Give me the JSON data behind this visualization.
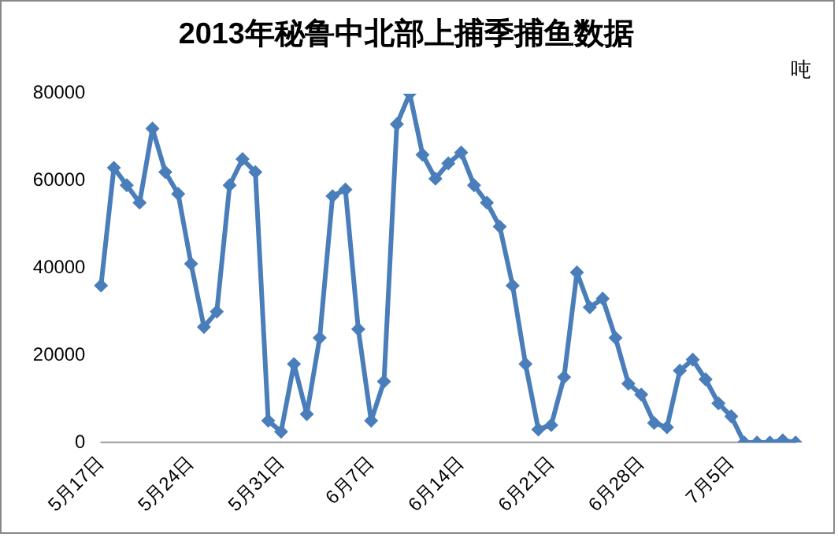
{
  "chart_data": {
    "type": "line",
    "title": "2013年秘鲁中北部上捕季捕鱼数据",
    "annotations": [
      "吨"
    ],
    "categories": [
      "5月17日",
      null,
      null,
      null,
      null,
      null,
      null,
      "5月24日",
      null,
      null,
      null,
      null,
      null,
      null,
      "5月31日",
      null,
      null,
      null,
      null,
      null,
      null,
      "6月7日",
      null,
      null,
      null,
      null,
      null,
      null,
      "6月14日",
      null,
      null,
      null,
      null,
      null,
      null,
      "6月21日",
      null,
      null,
      null,
      null,
      null,
      null,
      "6月28日",
      null,
      null,
      null,
      null,
      null,
      null,
      "7月5日",
      null,
      null,
      null,
      null,
      null
    ],
    "series": [
      {
        "color": "#4a7ebb",
        "values": [
          36000,
          63000,
          59000,
          55000,
          72000,
          62000,
          57000,
          41000,
          26500,
          30000,
          59000,
          65000,
          62000,
          5000,
          2500,
          18000,
          6500,
          24000,
          56500,
          58000,
          26000,
          5000,
          14000,
          73000,
          80000,
          66000,
          60500,
          64000,
          66500,
          59000,
          55000,
          49500,
          36000,
          18000,
          3000,
          4000,
          15000,
          39000,
          31000,
          33000,
          24000,
          13500,
          11000,
          4500,
          3500,
          16500,
          19000,
          14500,
          9000,
          6000,
          0,
          0,
          0,
          500,
          0
        ]
      }
    ],
    "ylim": [
      0,
      80000
    ],
    "yticks": [
      0,
      20000,
      40000,
      60000,
      80000
    ],
    "grid": false,
    "legend": false,
    "marker": "diamond",
    "line_style": "solid"
  }
}
